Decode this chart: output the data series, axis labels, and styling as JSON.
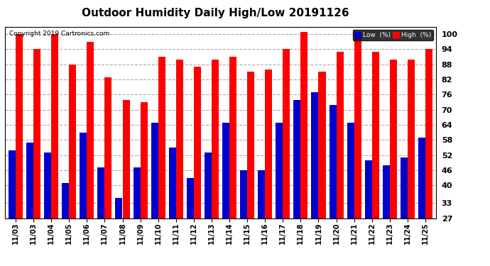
{
  "title": "Outdoor Humidity Daily High/Low 20191126",
  "copyright": "Copyright 2019 Cartronics.com",
  "labels": [
    "11/03",
    "11/03",
    "11/04",
    "11/05",
    "11/06",
    "11/07",
    "11/08",
    "11/09",
    "11/10",
    "11/11",
    "11/12",
    "11/13",
    "11/14",
    "11/15",
    "11/16",
    "11/17",
    "11/18",
    "11/19",
    "11/20",
    "11/21",
    "11/22",
    "11/23",
    "11/24",
    "11/25"
  ],
  "high": [
    100,
    94,
    100,
    88,
    97,
    83,
    74,
    73,
    91,
    90,
    87,
    90,
    91,
    85,
    86,
    94,
    101,
    85,
    93,
    101,
    93,
    90,
    90,
    94
  ],
  "low": [
    54,
    57,
    53,
    41,
    61,
    47,
    35,
    47,
    65,
    55,
    43,
    53,
    65,
    46,
    46,
    65,
    74,
    77,
    72,
    65,
    50,
    48,
    51,
    59
  ],
  "high_color": "#ff0000",
  "low_color": "#0000cc",
  "bg_color": "#ffffff",
  "plot_bg_color": "#ffffff",
  "title_fontsize": 11,
  "yticks": [
    27,
    33,
    40,
    46,
    52,
    58,
    64,
    70,
    76,
    82,
    88,
    94,
    100
  ],
  "ylim_min": 27,
  "ylim_max": 103,
  "grid_color": "#aaaaaa",
  "legend_low_label": "Low  (%)",
  "legend_high_label": "High  (%)"
}
